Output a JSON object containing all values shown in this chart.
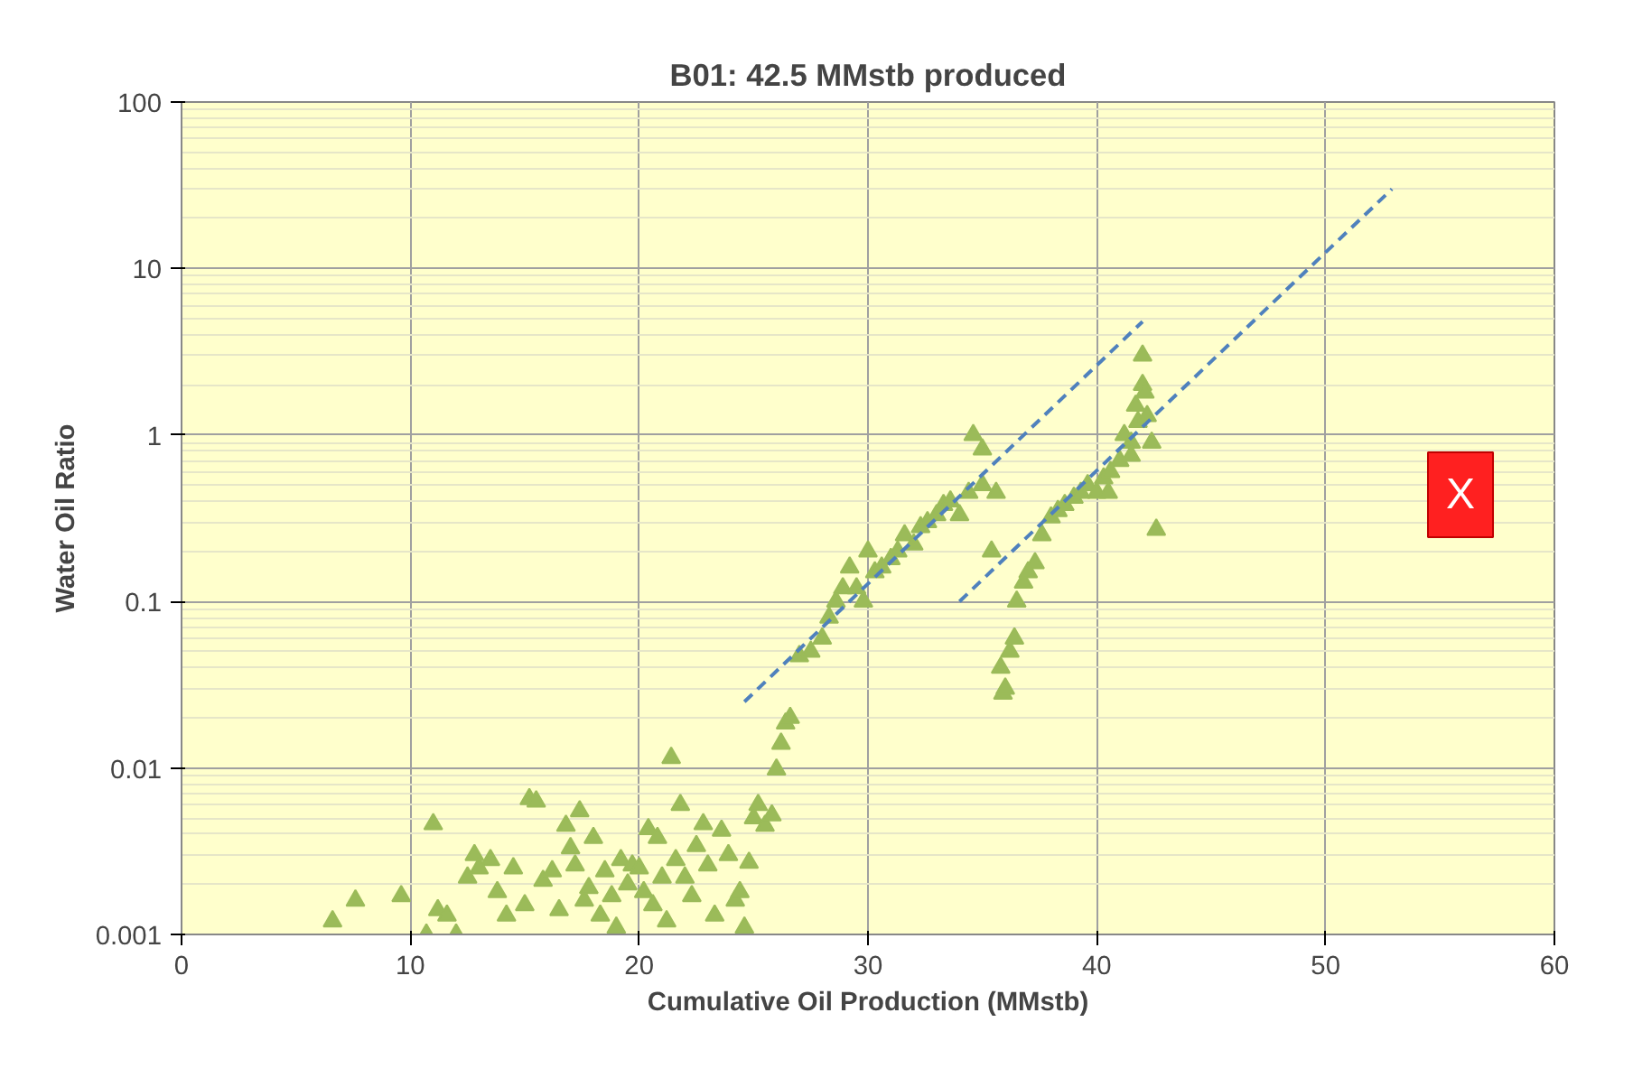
{
  "chart_data": {
    "type": "scatter",
    "title": "B01: 42.5 MMstb produced",
    "xlabel": "Cumulative Oil Production (MMstb)",
    "ylabel": "Water Oil Ratio",
    "log": "y",
    "grid": true,
    "marker": "triangle",
    "xlim": [
      0,
      60
    ],
    "xticks": [
      0,
      10,
      20,
      30,
      40,
      50,
      60
    ],
    "ylim": [
      0.001,
      100
    ],
    "yticks": [
      {
        "value": 0.001,
        "label": "0.001"
      },
      {
        "value": 0.01,
        "label": "0.01"
      },
      {
        "value": 0.1,
        "label": "0.1"
      },
      {
        "value": 1,
        "label": "1"
      },
      {
        "value": 10,
        "label": "10"
      },
      {
        "value": 100,
        "label": "100"
      }
    ],
    "annotations": [
      "X"
    ],
    "series": [
      {
        "color": "#9bbb59",
        "x": [
          6.6,
          7.6,
          9.6,
          10.7,
          11,
          11.2,
          11.6,
          12,
          12.5,
          12.8,
          13,
          13.5,
          13.8,
          14.2,
          14.5,
          15,
          15.2,
          15.5,
          15.8,
          16.2,
          16.5,
          16.8,
          17,
          17.2,
          17.4,
          17.6,
          17.8,
          18,
          18.3,
          18.5,
          18.8,
          19,
          19.2,
          19.5,
          19.7,
          20,
          20.2,
          20.4,
          20.6,
          20.8,
          21,
          21.2,
          21.4,
          21.6,
          21.8,
          22,
          22.3,
          22.5,
          22.8,
          23,
          23.3,
          23.6,
          23.9,
          24.2,
          24.4,
          24.6,
          24.8,
          25,
          25.2,
          25.5,
          25.8,
          26,
          26.2,
          26.4,
          26.6,
          27,
          27.5,
          28,
          28.3,
          28.6,
          28.9,
          29.2,
          29.5,
          29.8,
          30,
          30.3,
          30.6,
          31,
          31.3,
          31.6,
          32,
          32.3,
          32.6,
          33,
          33.3,
          33.6,
          34,
          34.4,
          34.6,
          35,
          35,
          35.6,
          35.4,
          35.9,
          36,
          35.8,
          36.2,
          36.4,
          36.5,
          36.8,
          37,
          37.3,
          37.6,
          38,
          38.3,
          38.6,
          39,
          39.3,
          39.6,
          40,
          40.3,
          40.6,
          41,
          41.2,
          41.5,
          41.7,
          41.8,
          42,
          42,
          42.1,
          42.2,
          42.4,
          42.6,
          40.5,
          41.5
        ],
        "values": [
          0.0012,
          0.0016,
          0.0017,
          0.001,
          0.0046,
          0.0014,
          0.0013,
          0.001,
          0.0022,
          0.003,
          0.0025,
          0.0028,
          0.0018,
          0.0013,
          0.0025,
          0.0015,
          0.0065,
          0.0063,
          0.0021,
          0.0024,
          0.0014,
          0.0045,
          0.0033,
          0.0026,
          0.0055,
          0.0016,
          0.0019,
          0.0038,
          0.0013,
          0.0024,
          0.0017,
          0.0011,
          0.0028,
          0.002,
          0.0026,
          0.0025,
          0.0018,
          0.0043,
          0.0015,
          0.0038,
          0.0022,
          0.0012,
          0.0115,
          0.0028,
          0.006,
          0.0022,
          0.0017,
          0.0034,
          0.0046,
          0.0026,
          0.0013,
          0.0042,
          0.003,
          0.0016,
          0.0018,
          0.0011,
          0.0027,
          0.005,
          0.006,
          0.0045,
          0.0052,
          0.0098,
          0.014,
          0.0185,
          0.02,
          0.047,
          0.05,
          0.06,
          0.08,
          0.1,
          0.12,
          0.16,
          0.12,
          0.1,
          0.2,
          0.15,
          0.16,
          0.18,
          0.2,
          0.25,
          0.22,
          0.28,
          0.3,
          0.33,
          0.38,
          0.4,
          0.33,
          0.45,
          1.0,
          0.5,
          0.82,
          0.45,
          0.2,
          0.028,
          0.03,
          0.04,
          0.05,
          0.06,
          0.1,
          0.13,
          0.15,
          0.17,
          0.25,
          0.32,
          0.35,
          0.38,
          0.42,
          0.45,
          0.5,
          0.45,
          0.55,
          0.6,
          0.7,
          1.0,
          0.9,
          1.5,
          1.2,
          2.0,
          3.0,
          1.8,
          1.3,
          0.9,
          0.27,
          0.45,
          0.75
        ]
      },
      {
        "type": "line",
        "color": "#4f81bd",
        "line_style": "dashed",
        "marker": "none",
        "x": [
          24.6,
          42.0
        ],
        "values": [
          0.025,
          4.8
        ]
      },
      {
        "type": "line",
        "color": "#4f81bd",
        "line_style": "dashed",
        "marker": "none",
        "x": [
          34.0,
          52.9
        ],
        "values": [
          0.1,
          30
        ]
      }
    ]
  }
}
